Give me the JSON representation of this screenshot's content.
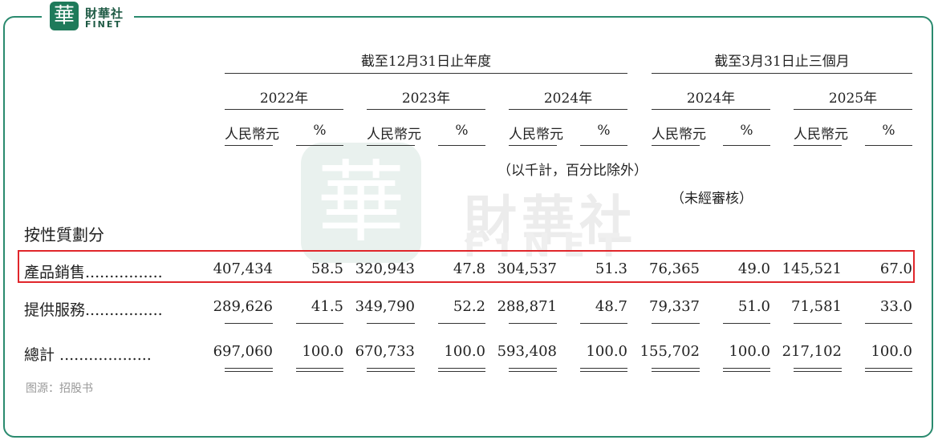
{
  "brand": {
    "icon_char": "華",
    "name_cn": "財華社",
    "name_en": "FINET"
  },
  "watermark": {
    "icon_char": "華",
    "name_cn": "財華社",
    "name_en": "FINET"
  },
  "header": {
    "group_year": "截至12月31日止年度",
    "group_quarter": "截至3月31日止三個月",
    "years": [
      "2022年",
      "2023年",
      "2024年",
      "2024年",
      "2025年"
    ],
    "col_rmb": "人民幣元",
    "col_pct": "%",
    "note_thousands": "（以千計，百分比除外）",
    "note_unaudited": "（未經審核）"
  },
  "section_title": "按性質劃分",
  "rows": [
    {
      "label": "產品銷售",
      "dots": "................",
      "values": [
        "407,434",
        "58.5",
        "320,943",
        "47.8",
        "304,537",
        "51.3",
        "76,365",
        "49.0",
        "145,521",
        "67.0"
      ]
    },
    {
      "label": "提供服務",
      "dots": "................",
      "values": [
        "289,626",
        "41.5",
        "349,790",
        "52.2",
        "288,871",
        "48.7",
        "79,337",
        "51.0",
        "71,581",
        "33.0"
      ]
    },
    {
      "label": "總計",
      "dots": " ...................",
      "values": [
        "697,060",
        "100.0",
        "670,733",
        "100.0",
        "593,408",
        "100.0",
        "155,702",
        "100.0",
        "217,102",
        "100.0"
      ]
    }
  ],
  "source": "图源：招股书",
  "colors": {
    "frame": "#2a8a6e",
    "highlight": "#e0262b"
  }
}
